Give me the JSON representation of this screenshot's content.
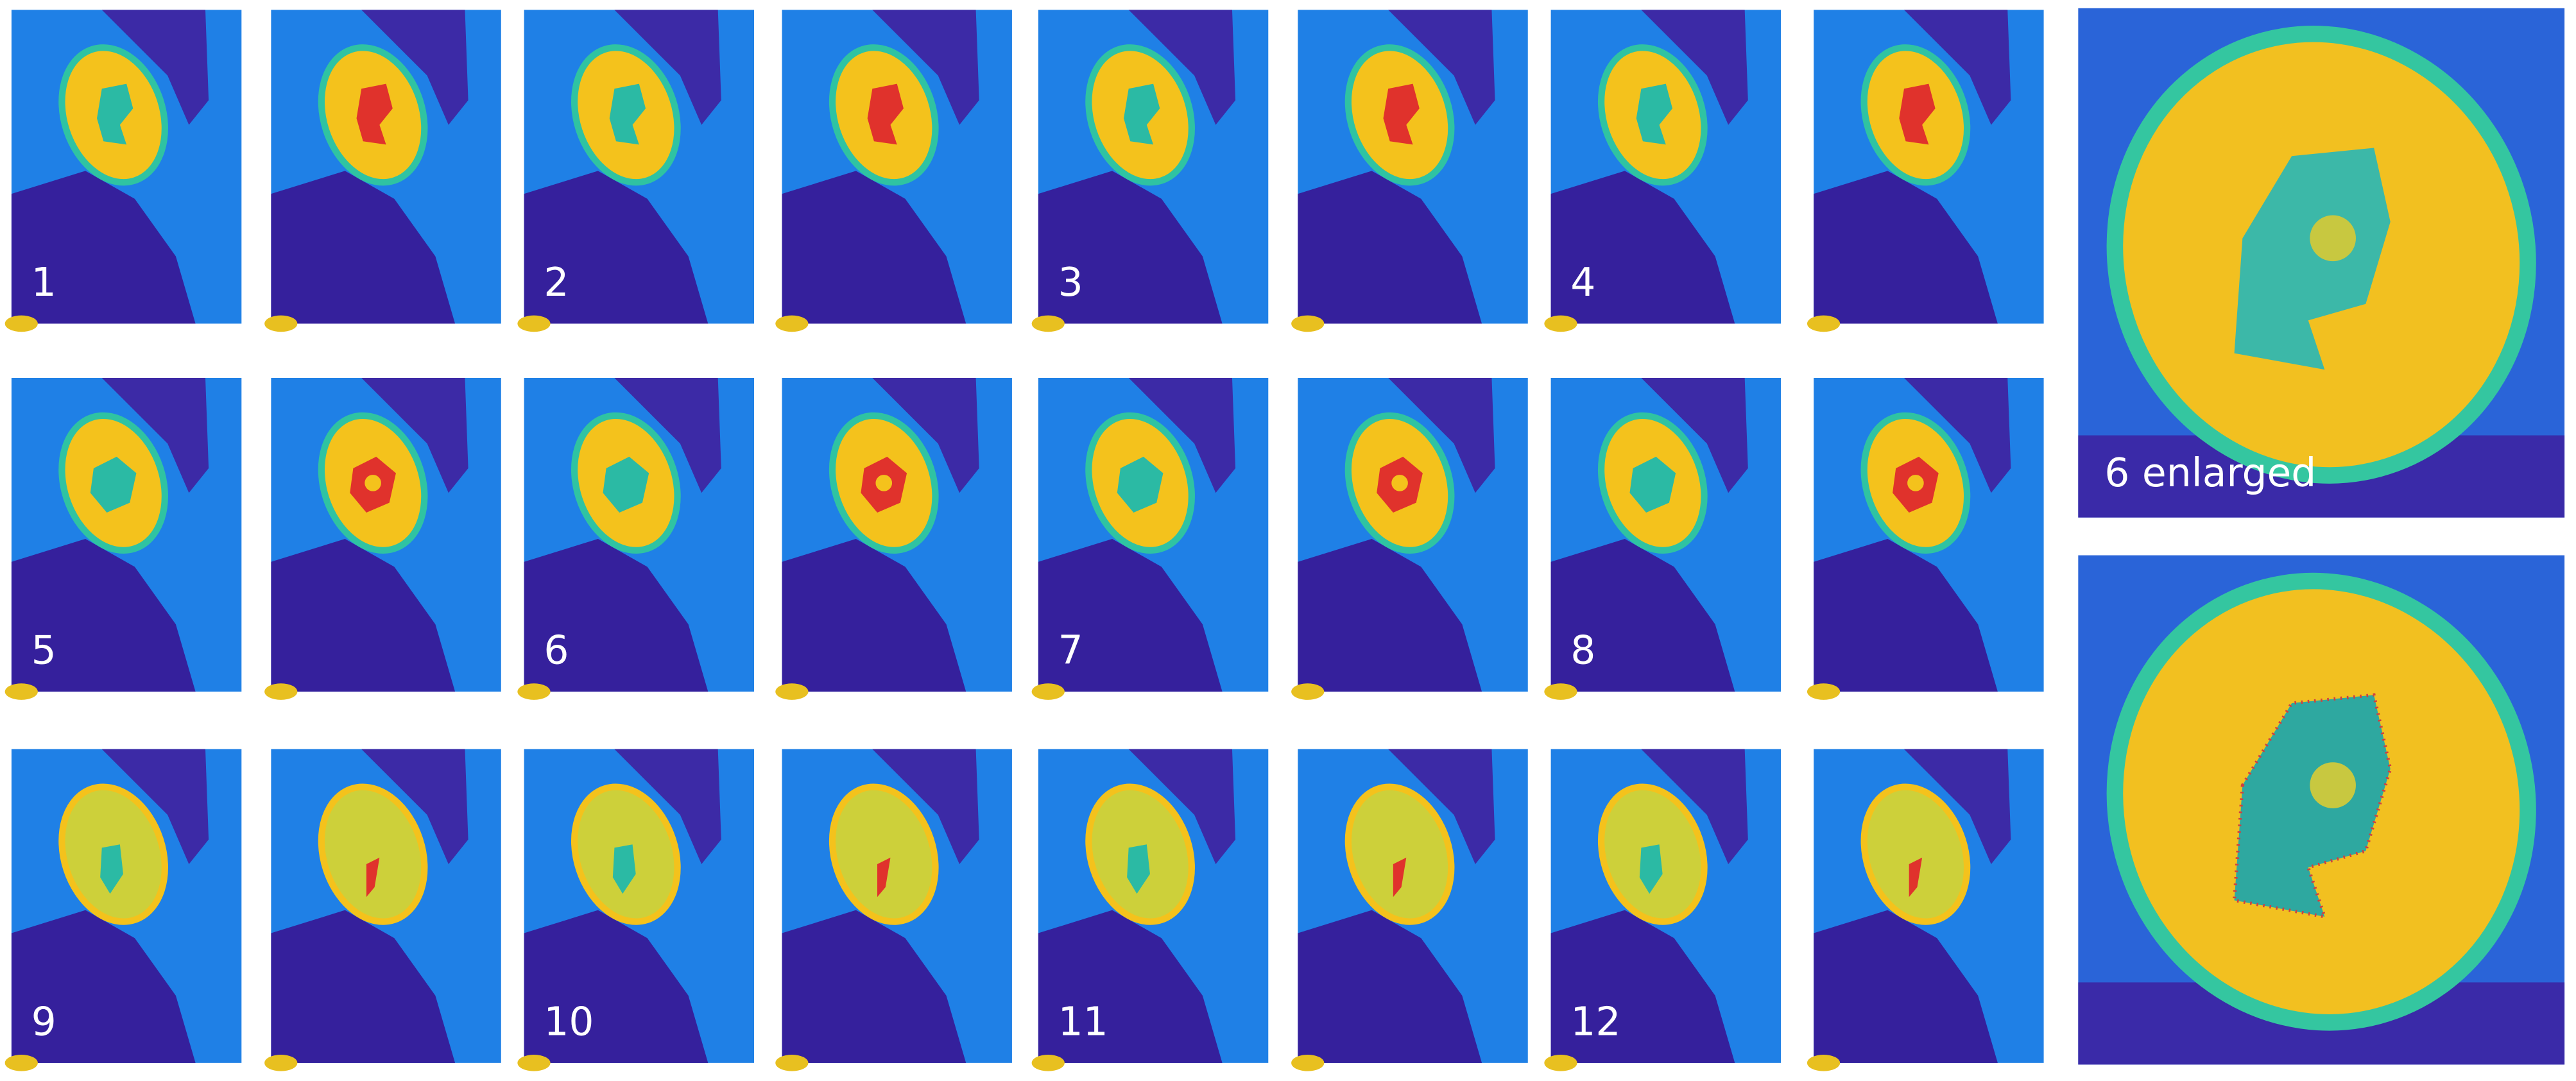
{
  "panels": {
    "labels": [
      "1",
      "2",
      "3",
      "4",
      "5",
      "6",
      "7",
      "8",
      "9",
      "10",
      "11",
      "12"
    ]
  },
  "enlarged_label": "6 enlarged"
}
